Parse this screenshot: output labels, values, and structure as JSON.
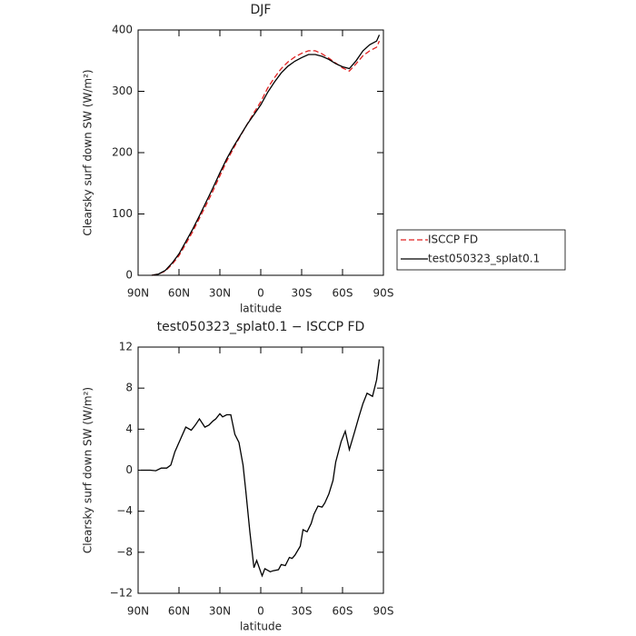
{
  "chart_data": [
    {
      "type": "line",
      "title": "DJF",
      "xlabel": "latitude",
      "ylabel": "Clearsky surf down SW (W/m²)",
      "x": [
        80,
        75,
        70,
        65,
        60,
        55,
        50,
        45,
        40,
        35,
        30,
        25,
        20,
        15,
        10,
        5,
        0,
        -5,
        -10,
        -15,
        -20,
        -25,
        -30,
        -35,
        -40,
        -45,
        -50,
        -55,
        -60,
        -65,
        -70,
        -75,
        -80,
        -85,
        -87
      ],
      "series": [
        {
          "name": "ISCCP FD",
          "color": "#e02020",
          "linestyle": "dashed",
          "values": [
            0,
            2,
            7,
            18,
            32,
            51,
            71,
            93,
            115,
            138,
            162,
            186,
            207,
            227,
            246,
            265,
            283,
            305,
            322,
            337,
            348,
            356,
            362,
            366,
            366,
            361,
            354,
            346,
            338,
            333,
            345,
            358,
            366,
            372,
            382
          ]
        },
        {
          "name": "test050323_splat0.1",
          "color": "#000000",
          "linestyle": "solid",
          "values": [
            0,
            2,
            8,
            20,
            35,
            55,
            75,
            97,
            120,
            143,
            167,
            190,
            210,
            228,
            246,
            262,
            278,
            298,
            315,
            330,
            341,
            349,
            355,
            360,
            360,
            357,
            352,
            345,
            340,
            337,
            350,
            366,
            376,
            382,
            392
          ]
        }
      ],
      "xlim": [
        90,
        -90
      ],
      "xticks": [
        {
          "value": 90,
          "label": "90N"
        },
        {
          "value": 60,
          "label": "60N"
        },
        {
          "value": 30,
          "label": "30N"
        },
        0,
        {
          "value": -30,
          "label": "30S"
        },
        {
          "value": -60,
          "label": "60S"
        },
        {
          "value": -90,
          "label": "90S"
        }
      ],
      "ylim": [
        0,
        400
      ],
      "yticks": [
        0,
        100,
        200,
        300,
        400
      ],
      "legend": "right"
    },
    {
      "type": "line",
      "title": "test050323_splat0.1 − ISCCP FD",
      "xlabel": "latitude",
      "ylabel": "Clearsky surf down SW (W/m²)",
      "x": [
        88,
        81,
        77,
        73,
        69,
        66,
        63,
        59,
        55,
        51,
        48,
        45,
        41,
        38,
        35,
        33,
        30,
        28,
        25,
        22,
        19,
        16,
        13,
        11,
        8,
        5,
        3,
        -1,
        -3,
        -7,
        -9,
        -13,
        -15,
        -18,
        -21,
        -23,
        -25,
        -29,
        -31,
        -34,
        -37,
        -39,
        -42,
        -45,
        -47,
        -50,
        -53,
        -55,
        -59,
        -62,
        -65,
        -69,
        -72,
        -75,
        -78,
        -82,
        -85,
        -87
      ],
      "values": [
        0,
        0,
        -0.05,
        0.2,
        0.2,
        0.5,
        1.8,
        3,
        4.2,
        3.9,
        4.4,
        5,
        4.2,
        4.4,
        4.8,
        5,
        5.5,
        5.2,
        5.4,
        5.4,
        3.5,
        2.7,
        0.5,
        -2,
        -6,
        -9.5,
        -8.8,
        -10.3,
        -9.6,
        -9.9,
        -9.8,
        -9.7,
        -9.2,
        -9.3,
        -8.5,
        -8.6,
        -8.3,
        -7.4,
        -5.8,
        -6,
        -5.2,
        -4.3,
        -3.5,
        -3.6,
        -3.2,
        -2.3,
        -1,
        0.8,
        2.8,
        3.8,
        2,
        3.8,
        5.2,
        6.5,
        7.5,
        7.2,
        8.8,
        10.8
      ],
      "color": "#000000",
      "xlim": [
        90,
        -90
      ],
      "xticks": [
        {
          "value": 90,
          "label": "90N"
        },
        {
          "value": 60,
          "label": "60N"
        },
        {
          "value": 30,
          "label": "30N"
        },
        0,
        {
          "value": -30,
          "label": "30S"
        },
        {
          "value": -60,
          "label": "60S"
        },
        {
          "value": -90,
          "label": "90S"
        }
      ],
      "ylim": [
        -12,
        12
      ],
      "yticks": [
        {
          "value": -12,
          "label": "−12"
        },
        {
          "value": -8,
          "label": "−8"
        },
        {
          "value": -4,
          "label": "−4"
        },
        0,
        4,
        8,
        12
      ]
    }
  ]
}
